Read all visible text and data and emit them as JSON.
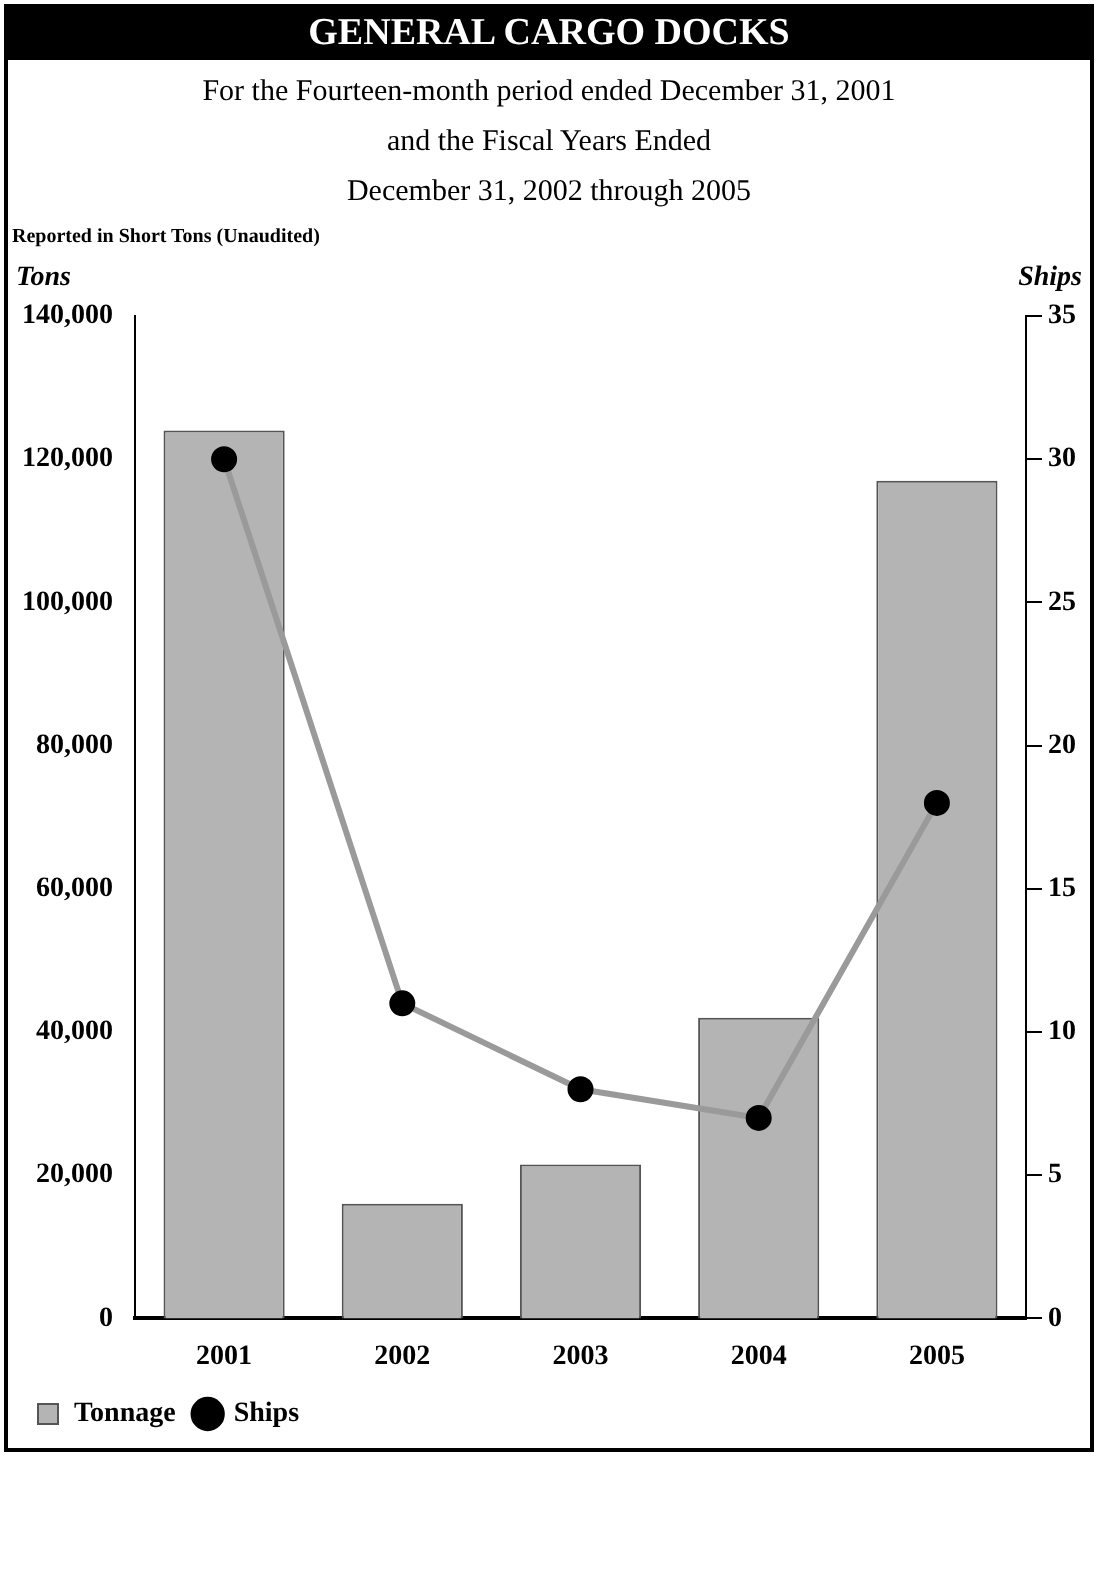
{
  "chart_data": {
    "type": "bar",
    "title": "GENERAL CARGO DOCKS",
    "subtitle": "For the Fourteen-month period ended December 31, 2001\nand the Fiscal Years Ended\nDecember 31, 2002 through 2005",
    "annotations": [
      "Reported in Short Tons (Unaudited)"
    ],
    "ylabel": "Tons",
    "y2label": "Ships",
    "categories": [
      "2001",
      "2002",
      "2003",
      "2004",
      "2005"
    ],
    "series": [
      {
        "name": "Tonnage",
        "color": "#b4b4b4",
        "values": [
          124000,
          16000,
          21500,
          42000,
          117000
        ]
      },
      {
        "name": "Ships",
        "type": "line",
        "axis": "y2",
        "color": "#9a9a9a",
        "values": [
          30,
          11,
          8,
          7,
          18
        ]
      }
    ],
    "ylim": [
      0,
      140000
    ],
    "yticks": [
      {
        "value": 0,
        "label": "0"
      },
      {
        "value": 20000,
        "label": "20,000"
      },
      {
        "value": 40000,
        "label": "40,000"
      },
      {
        "value": 60000,
        "label": "60,000"
      },
      {
        "value": 80000,
        "label": "80,000"
      },
      {
        "value": 100000,
        "label": "100,000"
      },
      {
        "value": 120000,
        "label": "120,000"
      },
      {
        "value": 140000,
        "label": "140,000"
      }
    ],
    "y2lim": [
      0,
      35
    ],
    "y2ticks": [
      0,
      5,
      10,
      15,
      20,
      25,
      30,
      35
    ],
    "grid": false,
    "legend": "bottom left",
    "marker": "circle"
  }
}
